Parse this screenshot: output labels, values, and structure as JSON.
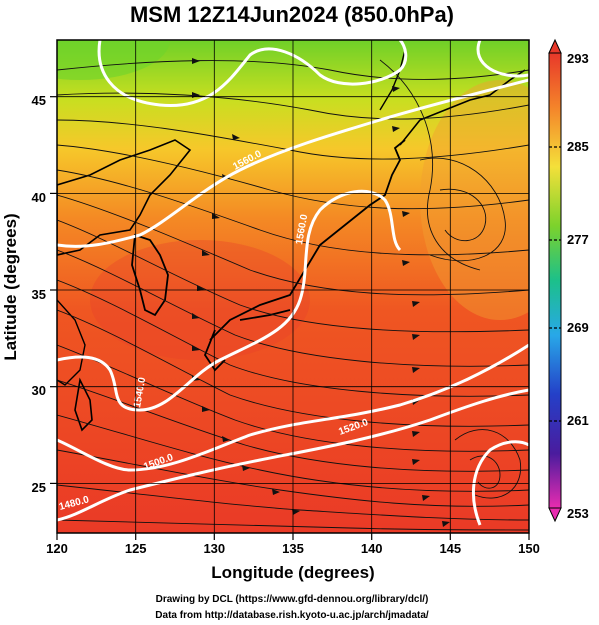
{
  "title": "MSM 12Z14Jun2024 (850.0hPa)",
  "x_axis": {
    "label": "Longitude (degrees)",
    "range": [
      120,
      150
    ],
    "ticks": [
      "120",
      "125",
      "130",
      "135",
      "140",
      "145",
      "150"
    ]
  },
  "y_axis": {
    "label": "Latitude  (degrees)",
    "range": [
      22.5,
      48
    ],
    "ticks": [
      "25",
      "30",
      "35",
      "40",
      "45"
    ]
  },
  "colorbar": {
    "unit_range": [
      253,
      293
    ],
    "labels": [
      "293",
      "285",
      "277",
      "269",
      "261",
      "253"
    ]
  },
  "contours": {
    "color": "#ffffff",
    "labels": [
      "1560.0",
      "1560.0",
      "1540.0",
      "1520.0",
      "1500.0",
      "1480.0"
    ]
  },
  "credits": {
    "line1": "Drawing by DCL (https://www.gfd-dennou.org/library/dcl/)",
    "line2": "Data from http://database.rish.kyoto-u.ac.jp/arch/jmadata/"
  },
  "chart_data": {
    "type": "heatmap",
    "title": "MSM 12Z14Jun2024 (850.0hPa)",
    "xlabel": "Longitude (degrees)",
    "ylabel": "Latitude  (degrees)",
    "xlim": [
      120,
      150
    ],
    "ylim": [
      22.5,
      48
    ],
    "colorbar_range": [
      253,
      293
    ],
    "colorbar_ticks": [
      293,
      285,
      277,
      269,
      261,
      253
    ],
    "overlays": [
      "streamlines",
      "geopotential height contours",
      "coastlines",
      "grid"
    ]
  }
}
